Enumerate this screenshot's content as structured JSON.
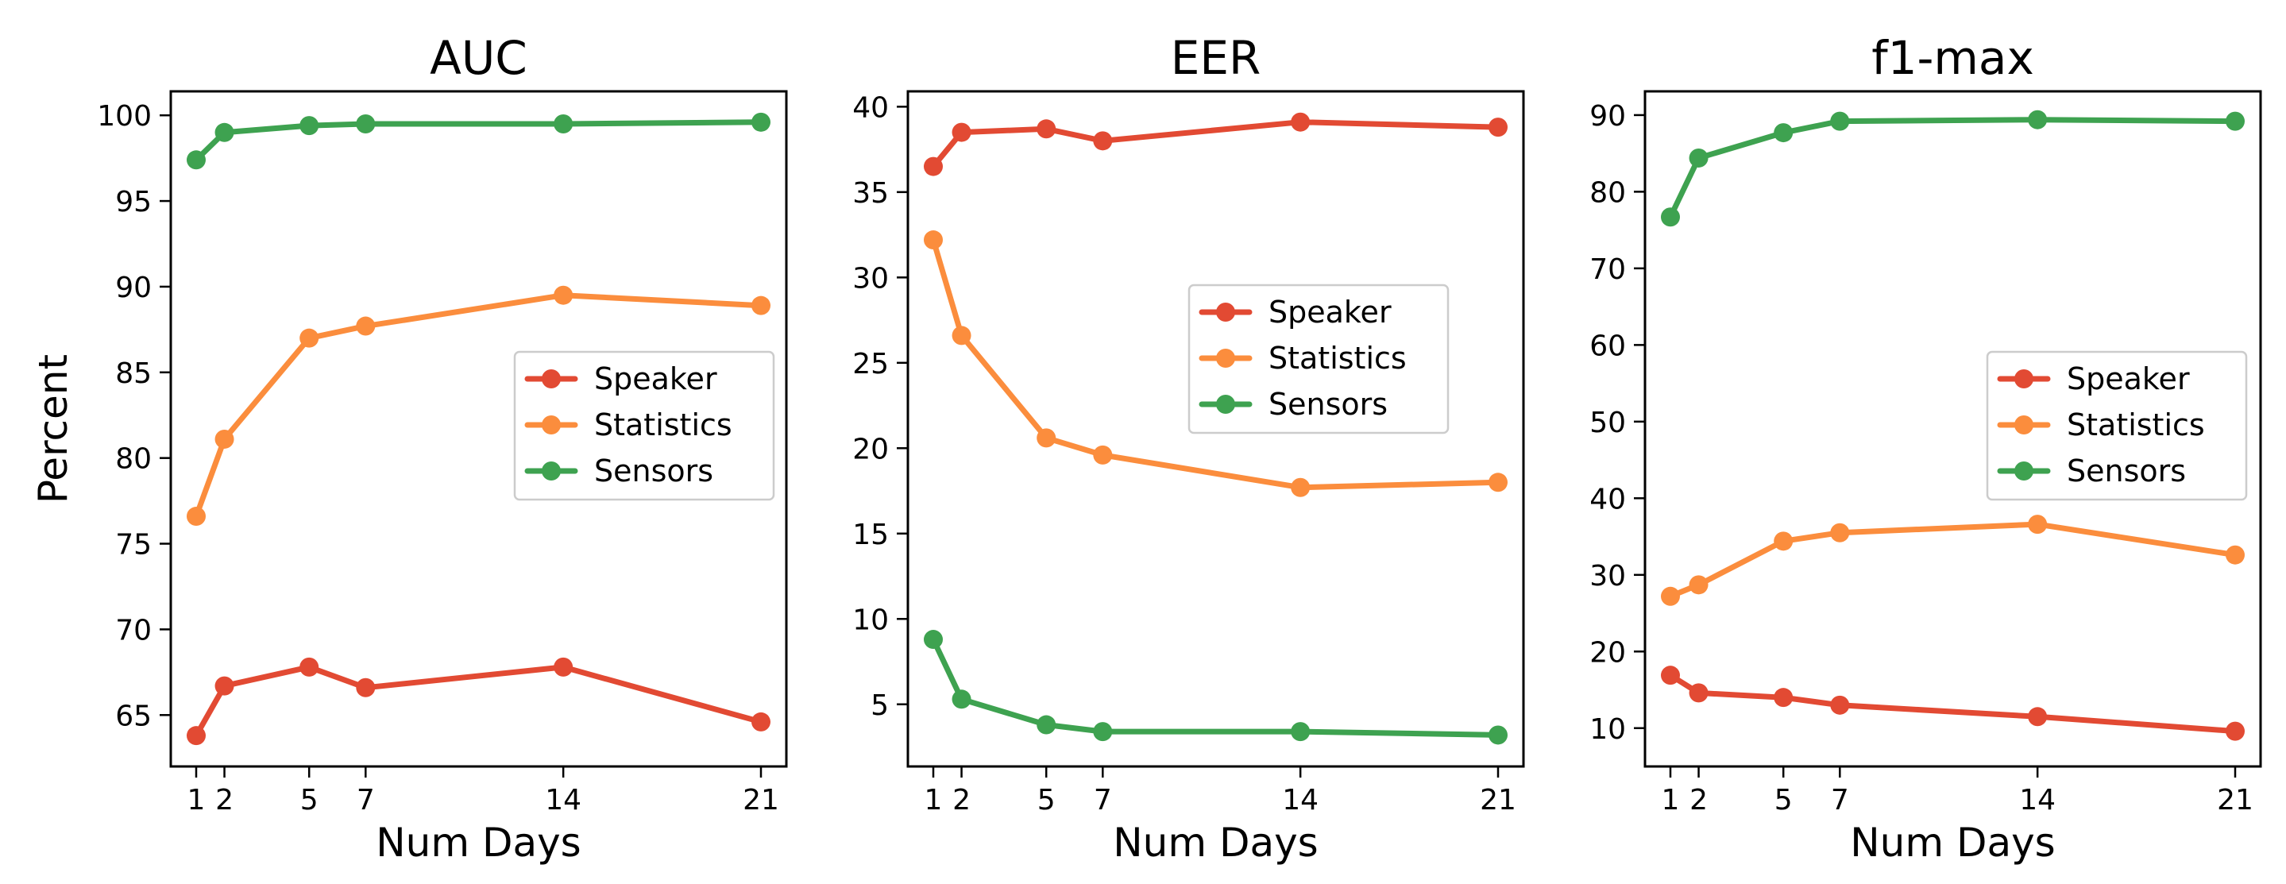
{
  "figure": {
    "ylabel": "Percent"
  },
  "chart_data": [
    {
      "type": "line",
      "title": "AUC",
      "xlabel": "Num Days",
      "ylabel": "Percent",
      "x": [
        1,
        2,
        5,
        7,
        14,
        21
      ],
      "xticks": [
        "1",
        "2",
        "5",
        "7",
        "14",
        "21"
      ],
      "xlim": [
        0.1,
        21.9
      ],
      "ylim": [
        62.0,
        101.4
      ],
      "yticks": [
        65,
        70,
        75,
        80,
        85,
        90,
        95,
        100
      ],
      "legend": "center-right",
      "series": [
        {
          "name": "Speaker",
          "color": "#e24a33",
          "values": [
            63.8,
            66.7,
            67.8,
            66.6,
            67.8,
            64.6
          ]
        },
        {
          "name": "Statistics",
          "color": "#fb8d3d",
          "values": [
            76.6,
            81.1,
            87.0,
            87.7,
            89.5,
            88.9
          ]
        },
        {
          "name": "Sensors",
          "color": "#3ea250",
          "values": [
            97.4,
            99.0,
            99.4,
            99.5,
            99.5,
            99.6
          ]
        }
      ]
    },
    {
      "type": "line",
      "title": "EER",
      "xlabel": "Num Days",
      "ylabel": "",
      "x": [
        1,
        2,
        5,
        7,
        14,
        21
      ],
      "xticks": [
        "1",
        "2",
        "5",
        "7",
        "14",
        "21"
      ],
      "xlim": [
        0.1,
        21.9
      ],
      "ylim": [
        1.36,
        40.9
      ],
      "yticks": [
        5,
        10,
        15,
        20,
        25,
        30,
        35,
        40
      ],
      "legend": "upper-right",
      "series": [
        {
          "name": "Speaker",
          "color": "#e24a33",
          "values": [
            36.5,
            38.5,
            38.7,
            38.0,
            39.1,
            38.8
          ]
        },
        {
          "name": "Statistics",
          "color": "#fb8d3d",
          "values": [
            32.2,
            26.6,
            20.6,
            19.6,
            17.7,
            18.0
          ]
        },
        {
          "name": "Sensors",
          "color": "#3ea250",
          "values": [
            8.8,
            5.3,
            3.8,
            3.4,
            3.4,
            3.2
          ]
        }
      ]
    },
    {
      "type": "line",
      "title": "f1-max",
      "xlabel": "Num Days",
      "ylabel": "",
      "x": [
        1,
        2,
        5,
        7,
        14,
        21
      ],
      "xticks": [
        "1",
        "2",
        "5",
        "7",
        "14",
        "21"
      ],
      "xlim": [
        0.1,
        21.9
      ],
      "ylim": [
        5.0,
        93.1
      ],
      "yticks": [
        10,
        20,
        30,
        40,
        50,
        60,
        70,
        80,
        90
      ],
      "legend": "center-right",
      "series": [
        {
          "name": "Speaker",
          "color": "#e24a33",
          "values": [
            16.9,
            14.6,
            14.0,
            13.0,
            11.5,
            9.6
          ]
        },
        {
          "name": "Statistics",
          "color": "#fb8d3d",
          "values": [
            27.2,
            28.7,
            34.4,
            35.5,
            36.6,
            32.6
          ]
        },
        {
          "name": "Sensors",
          "color": "#3ea250",
          "values": [
            76.7,
            84.4,
            87.7,
            89.2,
            89.4,
            89.2
          ]
        }
      ]
    }
  ]
}
